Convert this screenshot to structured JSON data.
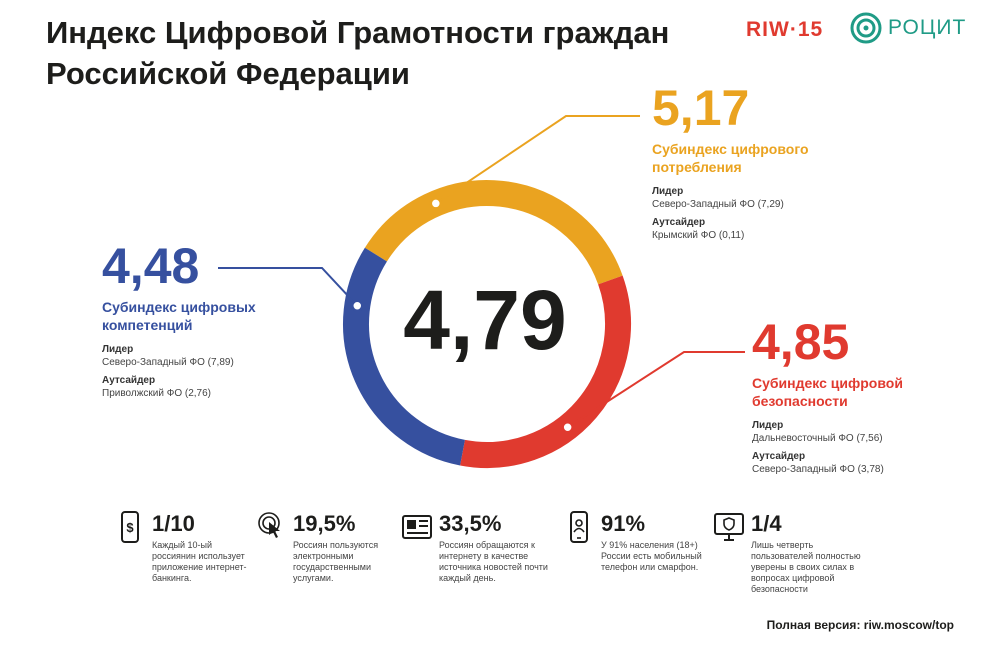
{
  "title": "Индекс Цифровой Грамотности граждан Российской Федерации",
  "logos": {
    "riw": "RIW·15",
    "rocit": "РОЦИТ"
  },
  "chart_data": {
    "type": "pie",
    "center_value": "4,79",
    "segments": [
      {
        "name": "Субиндекс цифрового потребления",
        "value": 5.17,
        "color": "#eaa320"
      },
      {
        "name": "Субиндекс цифровой безопасности",
        "value": 4.85,
        "color": "#e03a2f"
      },
      {
        "name": "Субиндекс цифровых компетенций",
        "value": 4.48,
        "color": "#36509f"
      }
    ]
  },
  "subindexes": {
    "consumption": {
      "value": "5,17",
      "name": "Субиндекс цифрового потребления",
      "leader_label": "Лидер",
      "leader": "Северо-Западный ФО (7,29)",
      "outsider_label": "Аутсайдер",
      "outsider": "Крымский ФО (0,11)",
      "color": "#eaa320"
    },
    "competence": {
      "value": "4,48",
      "name": "Субиндекс цифровых компетенций",
      "leader_label": "Лидер",
      "leader": "Северо-Западный ФО (7,89)",
      "outsider_label": "Аутсайдер",
      "outsider": "Приволжский ФО (2,76)",
      "color": "#36509f"
    },
    "security": {
      "value": "4,85",
      "name": "Субиндекс цифровой безопасности",
      "leader_label": "Лидер",
      "leader": "Дальневосточный ФО (7,56)",
      "outsider_label": "Аутсайдер",
      "outsider": "Северо-Западный ФО (3,78)",
      "color": "#e03a2f"
    }
  },
  "stats": [
    {
      "icon": "phone-banking-icon",
      "value": "1/10",
      "desc": "Каждый 10-ый россиянин использует приложение интернет-банкинга."
    },
    {
      "icon": "touch-gesture-icon",
      "value": "19,5%",
      "desc": "Россиян пользуются электронными государственными услугами."
    },
    {
      "icon": "newspaper-icon",
      "value": "33,5%",
      "desc": "Россиян обращаются к интернету в качестве источника новостей почти каждый день."
    },
    {
      "icon": "mobile-user-icon",
      "value": "91%",
      "desc": "У 91% населения (18+) России есть мобильный телефон или смарфон."
    },
    {
      "icon": "security-monitor-icon",
      "value": "1/4",
      "desc": "Лишь четверть пользователей полностью уверены в своих силах в вопросах цифровой безопасности"
    }
  ],
  "footer": "Полная версия: riw.moscow/top"
}
